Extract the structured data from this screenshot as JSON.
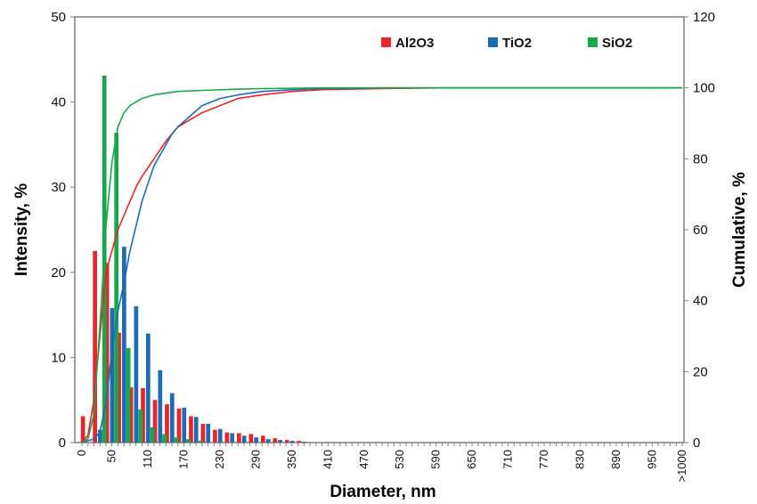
{
  "chart_data": {
    "type": "bar+line",
    "title": "",
    "xlabel": "Diameter, nm",
    "ylabel_left": "Intensity, %",
    "ylabel_right": "Cumulative, %",
    "ylim_left": [
      0,
      50
    ],
    "ylim_right": [
      0,
      120
    ],
    "yticks_left": [
      0,
      10,
      20,
      30,
      40,
      50
    ],
    "yticks_right": [
      0,
      20,
      40,
      60,
      80,
      100,
      120
    ],
    "xticks": [
      "0",
      "50",
      "110",
      "170",
      "230",
      "290",
      "350",
      "410",
      "470",
      "530",
      "590",
      "650",
      "710",
      "770",
      "830",
      "890",
      "950",
      ">1000"
    ],
    "grid": false,
    "legend_position": "top-right",
    "colors": {
      "Al2O3": "#e8252b",
      "TiO2": "#1f6ab4",
      "SiO2": "#1aa64a"
    },
    "x": [
      0,
      10,
      20,
      30,
      40,
      50,
      60,
      70,
      80,
      90,
      100,
      110,
      120,
      130,
      140,
      150,
      160,
      170,
      180,
      190,
      200,
      210,
      220,
      230,
      240,
      250,
      260,
      270,
      280,
      290,
      300,
      310,
      320,
      330,
      340,
      350,
      360,
      370,
      380,
      390,
      400,
      410,
      420,
      430,
      440,
      450,
      460,
      470,
      480,
      490,
      500,
      510,
      520,
      530,
      540,
      550,
      560,
      570,
      580,
      590,
      600,
      610,
      620,
      630,
      640,
      650,
      660,
      670,
      680,
      690,
      700,
      710,
      720,
      730,
      740,
      750,
      760,
      770,
      780,
      790,
      800,
      810,
      820,
      830,
      840,
      850,
      860,
      870,
      880,
      890,
      900,
      910,
      920,
      930,
      940,
      950,
      960,
      970,
      980,
      990,
      1000
    ],
    "series": [
      {
        "name": "Al2O3",
        "intensity": {
          "x": [
            10,
            30,
            50,
            70,
            90,
            110,
            130,
            150,
            170,
            190,
            210,
            230,
            250,
            270,
            290,
            310,
            330,
            350,
            370
          ],
          "values": [
            3.1,
            22.5,
            21.1,
            12.9,
            6.5,
            6.4,
            5.0,
            4.5,
            4.0,
            3.1,
            2.2,
            1.5,
            1.2,
            1.1,
            1.0,
            0.8,
            0.5,
            0.3,
            0.2
          ]
        },
        "cumulative": {
          "x": [
            0,
            10,
            20,
            30,
            40,
            50,
            60,
            70,
            80,
            90,
            100,
            120,
            140,
            160,
            180,
            200,
            230,
            260,
            300,
            350,
            400,
            500,
            600,
            800,
            1000
          ],
          "values": [
            0,
            2,
            12,
            30,
            48,
            54,
            60,
            64,
            68,
            72,
            75,
            80,
            85,
            89,
            91,
            93,
            95,
            97,
            98,
            99,
            99.5,
            99.8,
            100,
            100,
            100
          ]
        }
      },
      {
        "name": "TiO2",
        "intensity": {
          "x": [
            30,
            50,
            70,
            90,
            110,
            130,
            150,
            170,
            190,
            210,
            230,
            250,
            270,
            290,
            310,
            330,
            350,
            370
          ],
          "values": [
            1.5,
            15.8,
            23.0,
            16.0,
            12.8,
            8.5,
            5.8,
            4.1,
            3.0,
            2.2,
            1.6,
            1.1,
            0.8,
            0.6,
            0.4,
            0.3,
            0.2,
            0.1
          ]
        },
        "cumulative": {
          "x": [
            0,
            20,
            30,
            40,
            50,
            60,
            70,
            80,
            90,
            100,
            110,
            120,
            130,
            140,
            150,
            160,
            180,
            200,
            230,
            260,
            300,
            350,
            400,
            500,
            1000
          ],
          "values": [
            0,
            1,
            3,
            11,
            26,
            37,
            45,
            54,
            61,
            68,
            73,
            78,
            81,
            84,
            87,
            89,
            92,
            95,
            97,
            98,
            99,
            99.5,
            99.8,
            100,
            100
          ]
        }
      },
      {
        "name": "SiO2",
        "intensity": {
          "x": [
            30,
            50,
            70,
            90,
            110,
            130,
            150,
            170,
            190
          ],
          "values": [
            43.1,
            36.4,
            11.1,
            3.9,
            1.8,
            1.0,
            0.6,
            0.4,
            0.2
          ]
        },
        "cumulative": {
          "x": [
            0,
            10,
            20,
            30,
            40,
            50,
            60,
            70,
            80,
            90,
            100,
            110,
            120,
            140,
            160,
            200,
            250,
            300,
            400,
            1000
          ],
          "values": [
            0,
            1,
            8,
            33,
            61,
            79,
            89,
            93,
            95,
            96,
            97,
            97.5,
            98,
            98.5,
            99,
            99.3,
            99.6,
            99.8,
            100,
            100
          ]
        }
      }
    ]
  }
}
